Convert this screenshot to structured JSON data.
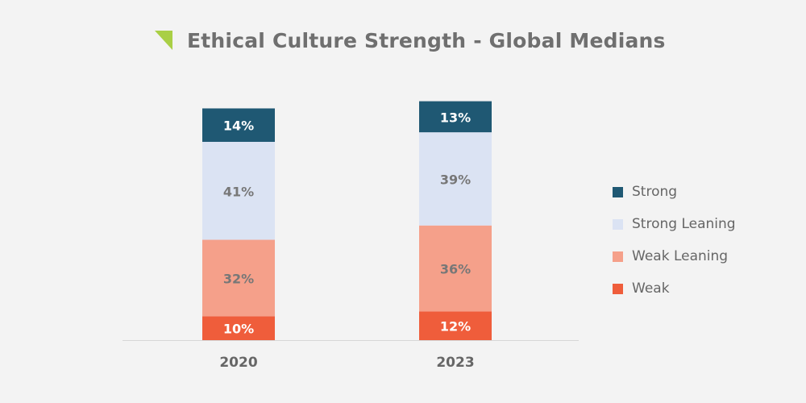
{
  "chart_data": {
    "type": "bar",
    "stacked": true,
    "title": "Ethical Culture Strength - Global Medians",
    "categories": [
      "2020",
      "2023"
    ],
    "series": [
      {
        "name": "Weak",
        "values": [
          10,
          12
        ],
        "labels": [
          "10%",
          "12%"
        ],
        "color": "#ef5d3b",
        "label_color": "#ffffff"
      },
      {
        "name": "Weak Leaning",
        "values": [
          32,
          36
        ],
        "labels": [
          "32%",
          "36%"
        ],
        "color": "#f5a08a",
        "label_color": "#777777"
      },
      {
        "name": "Strong Leaning",
        "values": [
          41,
          39
        ],
        "labels": [
          "41%",
          "39%"
        ],
        "color": "#dbe3f3",
        "label_color": "#777777"
      },
      {
        "name": "Strong",
        "values": [
          14,
          13
        ],
        "labels": [
          "14%",
          "13%"
        ],
        "color": "#1f5873",
        "label_color": "#ffffff"
      }
    ],
    "legend_order": [
      "Strong",
      "Strong Leaning",
      "Weak Leaning",
      "Weak"
    ],
    "legend_position": "right",
    "xlabel": "",
    "ylabel": "",
    "ylim": [
      0,
      100
    ],
    "grid": false
  },
  "colors": {
    "background": "#f3f3f3",
    "title_accent": "#a9cf45",
    "axis": "#d6d6d6",
    "text": "#666666"
  },
  "icons": {
    "title_marker": "green-triangle-icon"
  }
}
